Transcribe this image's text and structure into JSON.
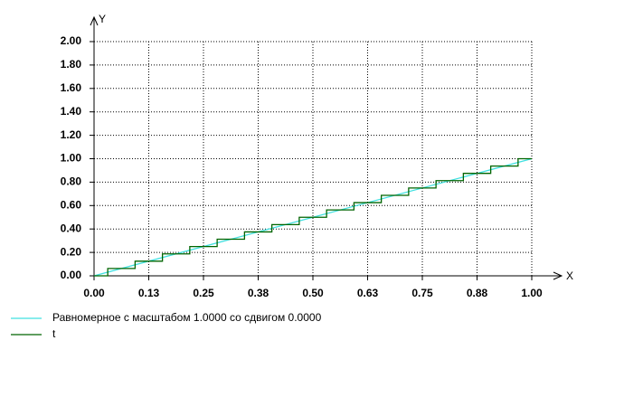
{
  "chart_data": {
    "type": "line",
    "x_label": "X",
    "y_label": "Y",
    "xlim": [
      0,
      1
    ],
    "ylim": [
      0,
      2
    ],
    "xticks": [
      {
        "value": 0,
        "label": "0.00"
      },
      {
        "value": 0.125,
        "label": "0.13"
      },
      {
        "value": 0.25,
        "label": "0.25"
      },
      {
        "value": 0.375,
        "label": "0.38"
      },
      {
        "value": 0.5,
        "label": "0.50"
      },
      {
        "value": 0.625,
        "label": "0.63"
      },
      {
        "value": 0.75,
        "label": "0.75"
      },
      {
        "value": 0.875,
        "label": "0.88"
      },
      {
        "value": 1,
        "label": "1.00"
      }
    ],
    "yticks": [
      {
        "value": 0,
        "label": "0.00"
      },
      {
        "value": 0.2,
        "label": "0.20"
      },
      {
        "value": 0.4,
        "label": "0.40"
      },
      {
        "value": 0.6,
        "label": "0.60"
      },
      {
        "value": 0.8,
        "label": "0.80"
      },
      {
        "value": 1,
        "label": "1.00"
      },
      {
        "value": 1.2,
        "label": "1.20"
      },
      {
        "value": 1.4,
        "label": "1.40"
      },
      {
        "value": 1.6,
        "label": "1.60"
      },
      {
        "value": 1.8,
        "label": "1.80"
      },
      {
        "value": 2,
        "label": "2.00"
      }
    ],
    "grid": true,
    "legend": "bottom",
    "series": [
      {
        "name": "Равномерное с масштабом 1.0000 со сдвигом 0.0000",
        "color": "#40e0e0",
        "x": [
          0,
          1
        ],
        "values": [
          0,
          1
        ]
      },
      {
        "name": "t",
        "color": "#006400",
        "x": [
          0,
          0.03125,
          0.03125,
          0.09375,
          0.09375,
          0.15625,
          0.15625,
          0.21875,
          0.21875,
          0.28125,
          0.28125,
          0.34375,
          0.34375,
          0.40625,
          0.40625,
          0.46875,
          0.46875,
          0.53125,
          0.53125,
          0.59375,
          0.59375,
          0.65625,
          0.65625,
          0.71875,
          0.71875,
          0.78125,
          0.78125,
          0.84375,
          0.84375,
          0.90625,
          0.90625,
          0.96875,
          0.96875,
          1
        ],
        "values": [
          0,
          0,
          0.0625,
          0.0625,
          0.125,
          0.125,
          0.1875,
          0.1875,
          0.25,
          0.25,
          0.3125,
          0.3125,
          0.375,
          0.375,
          0.4375,
          0.4375,
          0.5,
          0.5,
          0.5625,
          0.5625,
          0.625,
          0.625,
          0.6875,
          0.6875,
          0.75,
          0.75,
          0.8125,
          0.8125,
          0.875,
          0.875,
          0.9375,
          0.9375,
          1,
          1
        ]
      }
    ]
  }
}
